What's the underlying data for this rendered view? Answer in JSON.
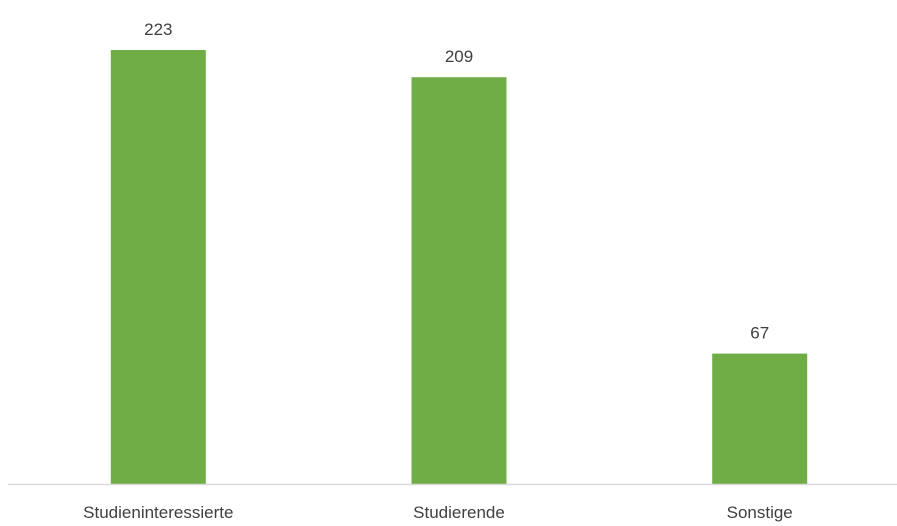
{
  "chart_data": {
    "type": "bar",
    "categories": [
      "Studieninteressierte",
      "Studierende",
      "Sonstige"
    ],
    "values": [
      223,
      209,
      67
    ],
    "data_labels": [
      "223",
      "209",
      "67"
    ],
    "title": "",
    "xlabel": "",
    "ylabel": "",
    "ylim": [
      0,
      250
    ],
    "grid": false,
    "legend": "none",
    "bar_color": "#70ad47",
    "axis_color": "#d9d9d9",
    "text_color": "#404040"
  }
}
